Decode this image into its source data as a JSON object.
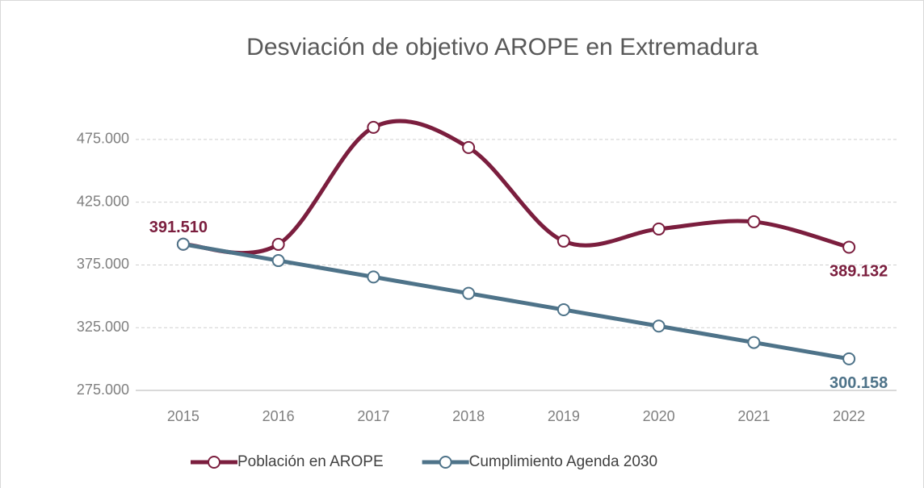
{
  "chart_data": {
    "type": "line",
    "title": "Desviación de objetivo AROPE en Extremadura",
    "categories": [
      "2015",
      "2016",
      "2017",
      "2018",
      "2019",
      "2020",
      "2021",
      "2022"
    ],
    "series": [
      {
        "name": "Población en AROPE",
        "color": "#7b1e3e",
        "smooth": true,
        "values": [
          391510,
          391400,
          484640,
          468570,
          393970,
          403620,
          409400,
          389132
        ],
        "value_labels": [
          "391.510",
          null,
          null,
          null,
          null,
          null,
          null,
          "389.132"
        ]
      },
      {
        "name": "Cumplimiento Agenda 2030",
        "color": "#4e7389",
        "smooth": false,
        "values": [
          391510,
          378460,
          365410,
          352359,
          339309,
          326259,
          313208,
          300158
        ],
        "value_labels": [
          null,
          null,
          null,
          null,
          null,
          null,
          null,
          "300.158"
        ]
      }
    ],
    "ylim": [
      275000,
      500000
    ],
    "yticks": [
      {
        "value": 275000,
        "label": "275.000"
      },
      {
        "value": 325000,
        "label": "325.000"
      },
      {
        "value": 375000,
        "label": "375.000"
      },
      {
        "value": 425000,
        "label": "425.000"
      },
      {
        "value": 475000,
        "label": "475.000"
      }
    ],
    "grid": true,
    "legend": "bottom"
  }
}
